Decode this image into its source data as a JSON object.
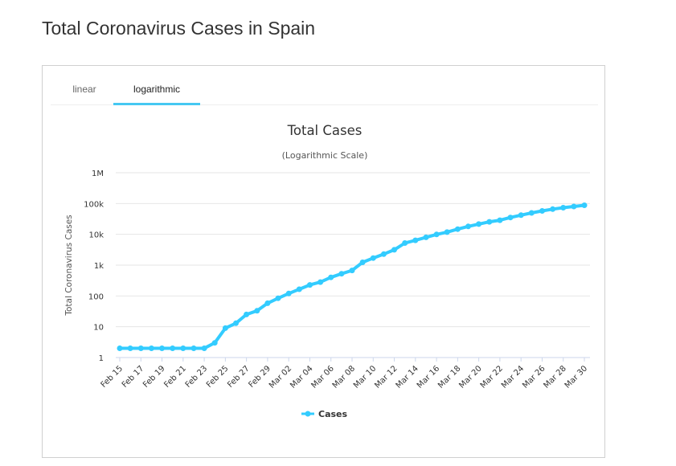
{
  "page": {
    "title": "Total Coronavirus Cases in Spain"
  },
  "tabs": [
    {
      "label": "linear",
      "active": false
    },
    {
      "label": "logarithmic",
      "active": true
    }
  ],
  "colors": {
    "series": "#33ccff",
    "tab_underline": "#45c8f2",
    "grid": "#e6e6e6"
  },
  "chart_data": {
    "type": "line",
    "title": "Total Cases",
    "subtitle": "(Logarithmic Scale)",
    "ylabel": "Total Coronavirus Cases",
    "xlabel": "",
    "yscale": "log",
    "ylim": [
      1,
      1000000
    ],
    "yticks": [
      {
        "value": 1000000,
        "label": "1M"
      },
      {
        "value": 100000,
        "label": "100k"
      },
      {
        "value": 10000,
        "label": "10k"
      },
      {
        "value": 1000,
        "label": "1k"
      },
      {
        "value": 100,
        "label": "100"
      },
      {
        "value": 10,
        "label": "10"
      },
      {
        "value": 1,
        "label": "1"
      }
    ],
    "grid": true,
    "legend_position": "bottom-center",
    "categories": [
      "Feb 15",
      "Feb 16",
      "Feb 17",
      "Feb 18",
      "Feb 19",
      "Feb 20",
      "Feb 21",
      "Feb 22",
      "Feb 23",
      "Feb 24",
      "Feb 25",
      "Feb 26",
      "Feb 27",
      "Feb 28",
      "Feb 29",
      "Mar 01",
      "Mar 02",
      "Mar 03",
      "Mar 04",
      "Mar 05",
      "Mar 06",
      "Mar 07",
      "Mar 08",
      "Mar 09",
      "Mar 10",
      "Mar 11",
      "Mar 12",
      "Mar 13",
      "Mar 14",
      "Mar 15",
      "Mar 16",
      "Mar 17",
      "Mar 18",
      "Mar 19",
      "Mar 20",
      "Mar 21",
      "Mar 22",
      "Mar 23",
      "Mar 24",
      "Mar 25",
      "Mar 26",
      "Mar 27",
      "Mar 28",
      "Mar 29",
      "Mar 30"
    ],
    "x_tick_labels": [
      "Feb 15",
      "Feb 17",
      "Feb 19",
      "Feb 21",
      "Feb 23",
      "Feb 25",
      "Feb 27",
      "Feb 29",
      "Mar 02",
      "Mar 04",
      "Mar 06",
      "Mar 08",
      "Mar 10",
      "Mar 12",
      "Mar 14",
      "Mar 16",
      "Mar 18",
      "Mar 20",
      "Mar 22",
      "Mar 24",
      "Mar 26",
      "Mar 28",
      "Mar 30"
    ],
    "series": [
      {
        "name": "Cases",
        "values": [
          2,
          2,
          2,
          2,
          2,
          2,
          2,
          2,
          2,
          3,
          9,
          13,
          25,
          33,
          58,
          84,
          120,
          165,
          228,
          282,
          401,
          525,
          674,
          1231,
          1695,
          2277,
          3146,
          5232,
          6391,
          7988,
          9942,
          11826,
          14769,
          18077,
          21571,
          25496,
          28768,
          35136,
          42058,
          49515,
          57786,
          65719,
          73235,
          80031,
          87956
        ]
      }
    ]
  }
}
